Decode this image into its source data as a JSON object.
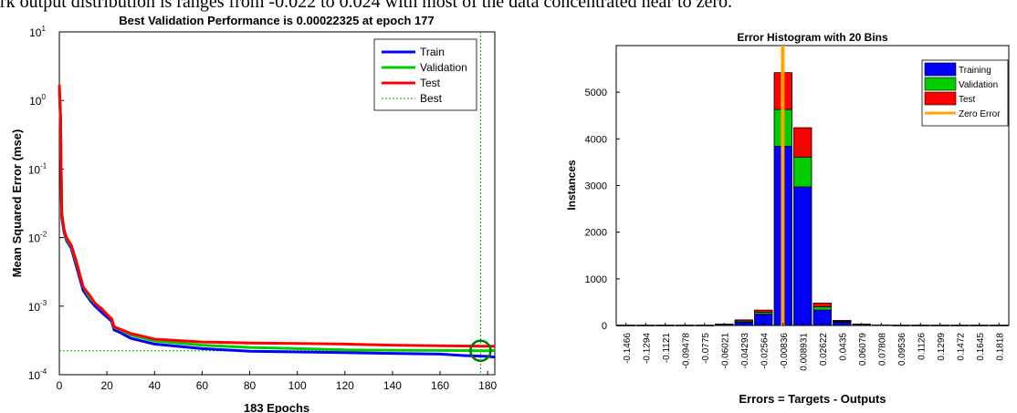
{
  "caption": "rk output distribution is ranges from -0.022 to 0.024 with most of the data concentrated near to zero.",
  "colors": {
    "train": "#0000ff",
    "validation": "#00cc00",
    "test": "#ff0000",
    "best": "#00aa00",
    "zero_error": "#ffa500",
    "best_circle": "#007700"
  },
  "chart_data": [
    {
      "type": "line",
      "title": "Best Validation Performance is 0.00022325 at epoch 177",
      "xlabel": "183 Epochs",
      "ylabel": "Mean Squared Error  (mse)",
      "xlim": [
        0,
        183
      ],
      "ylim": [
        0.0001,
        10
      ],
      "yscale": "log",
      "xticks": [
        0,
        20,
        40,
        60,
        80,
        100,
        120,
        140,
        160,
        180
      ],
      "yticks": [
        {
          "value": 0.0001,
          "base": "10",
          "exp": "-4"
        },
        {
          "value": 0.001,
          "base": "10",
          "exp": "-3"
        },
        {
          "value": 0.01,
          "base": "10",
          "exp": "-2"
        },
        {
          "value": 0.1,
          "base": "10",
          "exp": "-1"
        },
        {
          "value": 1,
          "base": "10",
          "exp": "0"
        },
        {
          "value": 10,
          "base": "10",
          "exp": "1"
        }
      ],
      "legend_position": "top-right",
      "series": [
        {
          "name": "Train",
          "color": "#0000ff",
          "x": [
            0,
            0.5,
            1,
            2,
            3,
            5,
            7,
            10,
            13,
            15,
            18,
            21,
            22,
            23,
            25,
            30,
            40,
            60,
            80,
            100,
            120,
            140,
            160,
            170,
            180,
            183
          ],
          "y": [
            1.5,
            0.5,
            0.02,
            0.012,
            0.009,
            0.007,
            0.004,
            0.0017,
            0.0012,
            0.001,
            0.0008,
            0.00065,
            0.0006,
            0.00045,
            0.00042,
            0.00034,
            0.00028,
            0.00024,
            0.00022,
            0.000215,
            0.00021,
            0.000205,
            0.0002,
            0.00019,
            0.000185,
            0.00018
          ]
        },
        {
          "name": "Validation",
          "color": "#00cc00",
          "x": [
            0,
            0.5,
            1,
            2,
            3,
            5,
            7,
            10,
            13,
            15,
            18,
            21,
            22,
            23,
            25,
            30,
            40,
            60,
            80,
            100,
            120,
            140,
            160,
            170,
            177,
            180,
            183
          ],
          "y": [
            1.6,
            0.55,
            0.022,
            0.013,
            0.0095,
            0.0075,
            0.0045,
            0.0019,
            0.0013,
            0.0011,
            0.0009,
            0.0007,
            0.00065,
            0.00049,
            0.00046,
            0.00038,
            0.00031,
            0.00027,
            0.00025,
            0.00024,
            0.00023,
            0.000228,
            0.000226,
            0.000225,
            0.00022325,
            0.000224,
            0.000225
          ]
        },
        {
          "name": "Test",
          "color": "#ff0000",
          "x": [
            0,
            0.5,
            1,
            2,
            3,
            5,
            7,
            10,
            13,
            15,
            18,
            21,
            22,
            23,
            25,
            30,
            40,
            60,
            80,
            100,
            120,
            140,
            160,
            170,
            180,
            183
          ],
          "y": [
            1.7,
            0.6,
            0.023,
            0.013,
            0.01,
            0.0078,
            0.0047,
            0.0019,
            0.0014,
            0.0011,
            0.0009,
            0.0007,
            0.00066,
            0.0005,
            0.00047,
            0.0004,
            0.00033,
            0.0003,
            0.00029,
            0.000285,
            0.00028,
            0.00027,
            0.000265,
            0.000262,
            0.00026,
            0.00026
          ]
        }
      ],
      "best": {
        "name": "Best",
        "epoch": 177,
        "value": 0.00022325
      }
    },
    {
      "type": "bar",
      "stacked": true,
      "title": "Error Histogram with 20 Bins",
      "xlabel": "Errors = Targets - Outputs",
      "ylabel": "Instances",
      "ylim": [
        0,
        6000
      ],
      "yticks": [
        0,
        1000,
        2000,
        3000,
        4000,
        5000
      ],
      "categories": [
        "-0.1466",
        "-0.1294",
        "-0.1121",
        "-0.09478",
        "-0.0775",
        "-0.06021",
        "-0.04293",
        "-0.02564",
        "-0.00836",
        "0.008931",
        "0.02622",
        "0.0435",
        "0.06079",
        "0.07808",
        "0.09536",
        "0.1126",
        "0.1299",
        "0.1472",
        "0.1645",
        "0.1818"
      ],
      "legend_position": "top-right",
      "series": [
        {
          "name": "Training",
          "color": "#0000ff",
          "values": [
            4,
            4,
            4,
            4,
            4,
            20,
            70,
            240,
            3840,
            2970,
            330,
            70,
            20,
            8,
            4,
            4,
            4,
            4,
            4,
            4
          ]
        },
        {
          "name": "Validation",
          "color": "#00cc00",
          "values": [
            1,
            1,
            1,
            1,
            1,
            5,
            25,
            40,
            790,
            640,
            70,
            20,
            5,
            2,
            1,
            1,
            1,
            1,
            1,
            1
          ]
        },
        {
          "name": "Test",
          "color": "#ff0000",
          "values": [
            1,
            1,
            1,
            1,
            1,
            5,
            25,
            50,
            790,
            630,
            80,
            20,
            5,
            2,
            1,
            1,
            1,
            1,
            1,
            1
          ]
        }
      ],
      "zero_error": {
        "name": "Zero Error",
        "color": "#ffa500",
        "x": 0
      }
    }
  ]
}
